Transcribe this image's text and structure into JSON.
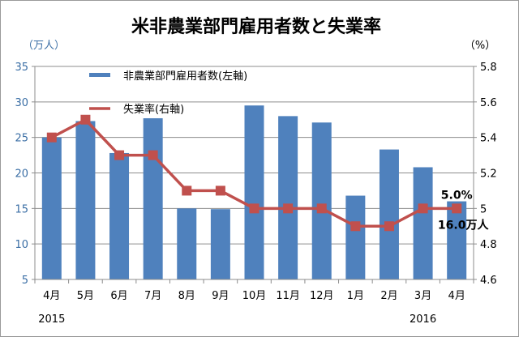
{
  "chart_data": {
    "type": "bar",
    "title": "米非農業部門雇用者数と失業率",
    "left_axis_unit": "（万人）",
    "right_axis_unit": "（%）",
    "categories": [
      "4月",
      "5月",
      "6月",
      "7月",
      "8月",
      "9月",
      "10月",
      "11月",
      "12月",
      "1月",
      "2月",
      "3月",
      "4月"
    ],
    "year_labels": [
      {
        "text": "2015",
        "category_index": 0
      },
      {
        "text": "2016",
        "category_index": 11
      }
    ],
    "series": [
      {
        "name": "非農業部門雇用者数(左軸)",
        "type": "bar",
        "axis": "left",
        "color": "#4f81bd",
        "values": [
          25.0,
          27.3,
          22.8,
          27.7,
          15.0,
          14.9,
          29.5,
          28.0,
          27.1,
          16.8,
          23.3,
          20.8,
          16.0
        ]
      },
      {
        "name": "失業率(右軸)",
        "type": "line",
        "axis": "right",
        "color": "#c0504d",
        "values": [
          5.4,
          5.5,
          5.3,
          5.3,
          5.1,
          5.1,
          5.0,
          5.0,
          5.0,
          4.9,
          4.9,
          5.0,
          5.0
        ]
      }
    ],
    "left_axis": {
      "min": 5,
      "max": 35,
      "ticks": [
        "5",
        "10",
        "15",
        "20",
        "25",
        "30",
        "35"
      ],
      "tick_color": "#3a6ea5"
    },
    "right_axis": {
      "min": 4.6,
      "max": 5.8,
      "ticks": [
        "4.6",
        "4.8",
        "5",
        "5.2",
        "5.4",
        "5.6",
        "5.8"
      ]
    },
    "grid": true,
    "legend_position": "top-left",
    "annotations": [
      {
        "text": "5.0%",
        "category_index": 12,
        "series": "line"
      },
      {
        "text": "16.0万人",
        "category_index": 12,
        "series": "bar"
      }
    ]
  }
}
